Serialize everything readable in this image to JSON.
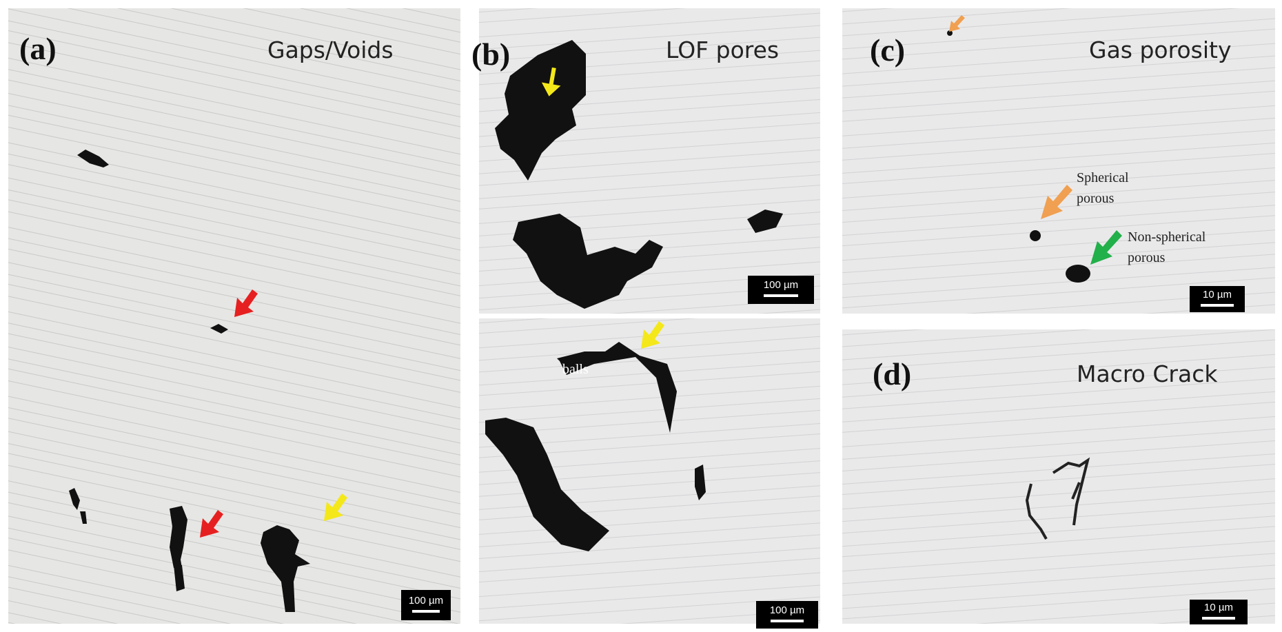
{
  "panels": [
    {
      "label": "(a)",
      "title": "Gaps/Voids",
      "scale_bar": "100 µm"
    },
    {
      "label": "(b)",
      "title": "LOF pores",
      "scale_bar_top": "100 µm",
      "scale_bar_bottom": "100 µm",
      "annotation": "balls"
    },
    {
      "label": "(c)",
      "title": "Gas porosity",
      "scale_bar": "10 µm",
      "annotations": [
        [
          "Spherical",
          "porous"
        ],
        [
          "Non-spherical",
          "porous"
        ]
      ]
    },
    {
      "label": "(d)",
      "title": "Macro Crack",
      "scale_bar": "10 µm"
    }
  ]
}
